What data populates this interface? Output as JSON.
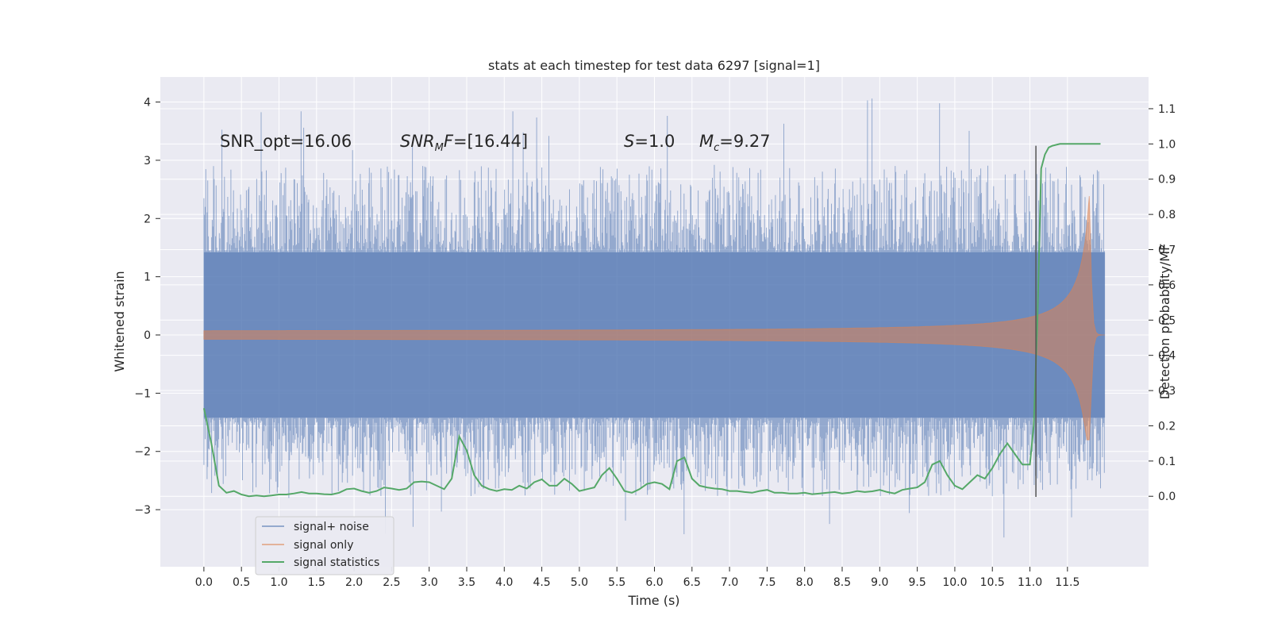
{
  "chart_data": {
    "type": "line",
    "title": "stats at each timestep for test data 6297 [signal=1]",
    "xlabel": "Time (s)",
    "ylabel": "Whitened strain",
    "ylabel_right": "Detection probability/MF",
    "xlim": [
      -0.58,
      12.58
    ],
    "ylim": [
      -3.98,
      4.43
    ],
    "ylim_right": [
      -0.2,
      1.19
    ],
    "x_ticks": [
      "0.0",
      "0.5",
      "1.0",
      "1.5",
      "2.0",
      "2.5",
      "3.0",
      "3.5",
      "4.0",
      "4.5",
      "5.0",
      "5.5",
      "6.0",
      "6.5",
      "7.0",
      "7.5",
      "8.0",
      "8.5",
      "9.0",
      "9.5",
      "10.0",
      "10.5",
      "11.0",
      "11.5"
    ],
    "y_ticks": [
      "4",
      "3",
      "2",
      "1",
      "0",
      "−1",
      "−2",
      "−3"
    ],
    "y_ticks_right": [
      "1.1",
      "1.0",
      "0.9",
      "0.8",
      "0.7",
      "0.6",
      "0.5",
      "0.4",
      "0.3",
      "0.2",
      "0.1",
      "0.0"
    ],
    "annotations": {
      "snr_opt": "SNR_opt=16.06",
      "snr_mf_main": "SNR",
      "snr_mf_sub": "M",
      "snr_mf_rest": "F=[16.44]",
      "s_var": "S",
      "s_rest": "=1.0",
      "mc_var": "M",
      "mc_sub": "c",
      "mc_rest": "=9.27"
    },
    "detection_time": 11.08,
    "legend": {
      "placement": "lower-left",
      "entries": [
        "signal+ noise",
        "signal only",
        "signal statistics"
      ]
    },
    "series": [
      {
        "name": "signal+ noise",
        "color": "#4c72b0",
        "kind": "noise",
        "t_start": 0.0,
        "t_end": 12.0,
        "bulk_amplitude": 1.42,
        "peak_high": 4.1,
        "peak_low": -3.6
      },
      {
        "name": "signal only",
        "color": "#dd8452",
        "kind": "chirp",
        "t_start": 0.0,
        "t_end": 12.0,
        "merger_time": 11.8,
        "peak_amplitude": 2.55,
        "peak_low": -1.8
      },
      {
        "name": "signal statistics",
        "color": "#55a868",
        "kind": "line",
        "x": [
          0.0,
          0.1,
          0.2,
          0.3,
          0.4,
          0.5,
          0.6,
          0.7,
          0.8,
          0.9,
          1.0,
          1.1,
          1.2,
          1.3,
          1.4,
          1.5,
          1.6,
          1.7,
          1.8,
          1.9,
          2.0,
          2.1,
          2.2,
          2.3,
          2.4,
          2.5,
          2.6,
          2.7,
          2.8,
          2.9,
          3.0,
          3.1,
          3.2,
          3.3,
          3.4,
          3.5,
          3.6,
          3.7,
          3.8,
          3.9,
          4.0,
          4.1,
          4.2,
          4.3,
          4.4,
          4.5,
          4.6,
          4.7,
          4.8,
          4.9,
          5.0,
          5.1,
          5.2,
          5.3,
          5.4,
          5.5,
          5.6,
          5.7,
          5.8,
          5.9,
          6.0,
          6.1,
          6.2,
          6.3,
          6.4,
          6.5,
          6.6,
          6.7,
          6.8,
          6.9,
          7.0,
          7.1,
          7.2,
          7.3,
          7.4,
          7.5,
          7.6,
          7.7,
          7.8,
          7.9,
          8.0,
          8.1,
          8.2,
          8.3,
          8.4,
          8.5,
          8.6,
          8.7,
          8.8,
          8.9,
          9.0,
          9.1,
          9.2,
          9.3,
          9.4,
          9.5,
          9.6,
          9.7,
          9.8,
          9.9,
          10.0,
          10.1,
          10.2,
          10.3,
          10.4,
          10.5,
          10.6,
          10.7,
          10.8,
          10.9,
          11.0,
          11.05,
          11.1,
          11.15,
          11.2,
          11.25,
          11.3,
          11.4,
          11.5,
          11.6,
          11.7,
          11.8,
          11.9,
          11.94
        ],
        "y": [
          0.25,
          0.15,
          0.03,
          0.01,
          0.015,
          0.005,
          0.0,
          0.002,
          0.0,
          0.002,
          0.005,
          0.005,
          0.008,
          0.012,
          0.008,
          0.008,
          0.006,
          0.005,
          0.01,
          0.02,
          0.022,
          0.015,
          0.01,
          0.015,
          0.025,
          0.022,
          0.018,
          0.022,
          0.04,
          0.042,
          0.04,
          0.03,
          0.02,
          0.05,
          0.17,
          0.13,
          0.06,
          0.03,
          0.02,
          0.015,
          0.02,
          0.018,
          0.03,
          0.022,
          0.04,
          0.048,
          0.03,
          0.03,
          0.05,
          0.035,
          0.015,
          0.02,
          0.025,
          0.06,
          0.08,
          0.05,
          0.015,
          0.01,
          0.02,
          0.035,
          0.04,
          0.035,
          0.02,
          0.1,
          0.11,
          0.05,
          0.03,
          0.025,
          0.022,
          0.02,
          0.015,
          0.015,
          0.012,
          0.01,
          0.015,
          0.018,
          0.01,
          0.01,
          0.008,
          0.008,
          0.01,
          0.006,
          0.008,
          0.01,
          0.012,
          0.008,
          0.01,
          0.015,
          0.012,
          0.014,
          0.018,
          0.012,
          0.008,
          0.018,
          0.022,
          0.025,
          0.04,
          0.09,
          0.1,
          0.06,
          0.03,
          0.02,
          0.04,
          0.06,
          0.05,
          0.08,
          0.12,
          0.15,
          0.12,
          0.09,
          0.09,
          0.2,
          0.5,
          0.93,
          0.97,
          0.99,
          0.995,
          1.0,
          1.0,
          1.0,
          1.0,
          1.0,
          1.0,
          1.0
        ]
      }
    ]
  }
}
